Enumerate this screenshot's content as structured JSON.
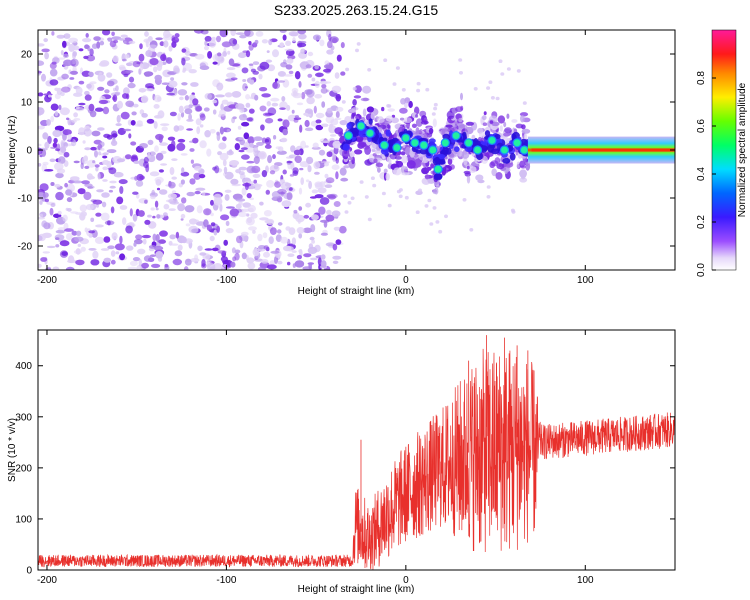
{
  "figure_title": "S233.2025.263.15.24.G15",
  "chart_data": [
    {
      "type": "heatmap",
      "xlabel": "Height of straight line (km)",
      "ylabel": "Frequency (Hz)",
      "xlim": [
        -205,
        150
      ],
      "ylim": [
        -25,
        25
      ],
      "xticks": [
        -200,
        -100,
        0,
        100
      ],
      "yticks": [
        -20,
        -10,
        0,
        10,
        20
      ],
      "colorbar": {
        "label": "Normalized spectral amplitude",
        "range": [
          0,
          1
        ],
        "ticks": [
          "0.0",
          "0.2",
          "0.4",
          "0.6",
          "0.8"
        ],
        "colormap": "rainbow: lavender, purple, blue, cyan, green, yellow, orange, red, magenta"
      },
      "regions": [
        {
          "x_range": [
            -205,
            -35
          ],
          "freq_range": [
            -25,
            25
          ],
          "description": "broadband noise",
          "amplitude": "0.0-0.2"
        },
        {
          "x_range": [
            -35,
            68
          ],
          "freq_range": [
            -12,
            15
          ],
          "description": "scattered signal",
          "amplitude": "0.1-0.5"
        },
        {
          "x_range": [
            68,
            150
          ],
          "freq_range": [
            -2,
            2
          ],
          "description": "narrow band near 0 Hz",
          "amplitude": "0.5-1.0"
        }
      ],
      "signal_track": [
        {
          "x": -32,
          "f": 3
        },
        {
          "x": -25,
          "f": 5
        },
        {
          "x": -20,
          "f": 3.5
        },
        {
          "x": -12,
          "f": 1
        },
        {
          "x": -5,
          "f": 0.5
        },
        {
          "x": 0,
          "f": 2.5
        },
        {
          "x": 5,
          "f": 1.5
        },
        {
          "x": 10,
          "f": 1
        },
        {
          "x": 15,
          "f": 0
        },
        {
          "x": 18,
          "f": -4
        },
        {
          "x": 22,
          "f": 1.5
        },
        {
          "x": 28,
          "f": 3
        },
        {
          "x": 35,
          "f": 1.5
        },
        {
          "x": 40,
          "f": 0
        },
        {
          "x": 48,
          "f": 2
        },
        {
          "x": 55,
          "f": 0
        },
        {
          "x": 62,
          "f": 1.5
        },
        {
          "x": 66,
          "f": 0
        },
        {
          "x": 70,
          "f": 0
        },
        {
          "x": 150,
          "f": -0.5
        }
      ]
    },
    {
      "type": "line",
      "xlabel": "Height of straight line (km)",
      "ylabel": "SNR (10 * v/v)",
      "xlim": [
        -205,
        150
      ],
      "ylim": [
        0,
        470
      ],
      "xticks": [
        -200,
        -100,
        0,
        100
      ],
      "yticks": [
        0,
        100,
        200,
        300,
        400
      ],
      "color": "#e8302c",
      "envelope": [
        {
          "x": -205,
          "mean": 18,
          "spread": 12
        },
        {
          "x": -30,
          "mean": 18,
          "spread": 12
        },
        {
          "x": -28,
          "mean": 90,
          "spread": 80
        },
        {
          "x": -20,
          "mean": 60,
          "spread": 70
        },
        {
          "x": -10,
          "mean": 110,
          "spread": 90
        },
        {
          "x": 0,
          "mean": 150,
          "spread": 100
        },
        {
          "x": 20,
          "mean": 200,
          "spread": 120
        },
        {
          "x": 40,
          "mean": 230,
          "spread": 200
        },
        {
          "x": 60,
          "mean": 240,
          "spread": 210
        },
        {
          "x": 72,
          "mean": 230,
          "spread": 170
        },
        {
          "x": 75,
          "mean": 250,
          "spread": 35
        },
        {
          "x": 150,
          "mean": 275,
          "spread": 35
        }
      ],
      "peaks": [
        {
          "x": -25,
          "y": 255
        },
        {
          "x": 35,
          "y": 410
        },
        {
          "x": 45,
          "y": 460
        },
        {
          "x": 55,
          "y": 455
        },
        {
          "x": 62,
          "y": 440
        },
        {
          "x": 68,
          "y": 430
        }
      ]
    }
  ]
}
